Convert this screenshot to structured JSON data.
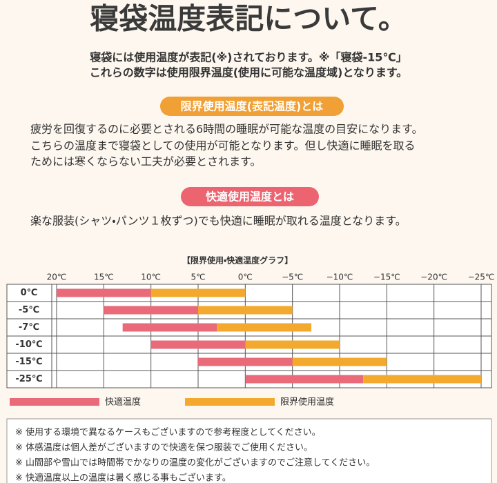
{
  "header": {
    "title": "寝袋温度表記について。",
    "intro": [
      "寝袋には使用温度が表記(※)されております。※「寝袋-15℃」",
      "これらの数字は使用限界温度(使用に可能な温度域)となります。"
    ]
  },
  "sections": [
    {
      "label": "限界使用温度(表記温度)とは",
      "lines": [
        "疲労を回復するのに必要とされる6時間の睡眠が可能な温度の目安になります。",
        "こちらの温度まで寝袋としての使用が可能となります。但し快適に睡眠を取る",
        "ためには寒くならない工夫が必要とされます。"
      ]
    },
    {
      "label": "快適使用温度とは",
      "lines": [
        "楽な服装(シャツ・パンツ１枚ずつ)でも快適に睡眠が取れる温度となります。"
      ]
    }
  ],
  "chart_data": {
    "type": "range_bar",
    "title": "【限界使用・快適温度グラフ】",
    "categories": [
      "0℃",
      "-5℃",
      "-7℃",
      "-10℃",
      "-15℃",
      "-25℃"
    ],
    "series": [
      {
        "name": "快適温度",
        "color": "#e96a78",
        "start": [
          20,
          15,
          13,
          10,
          5,
          0
        ],
        "end": [
          10,
          5,
          3,
          0,
          -5,
          -12.5
        ]
      },
      {
        "name": "限界使用温度",
        "color": "#f2a92e",
        "start": [
          10,
          5,
          3,
          0,
          -5,
          -12.5
        ],
        "end": [
          0,
          -5,
          -7,
          -10,
          -15,
          -25
        ]
      }
    ],
    "xlim": [
      20,
      -25
    ],
    "xticks": [
      {
        "value": 20,
        "label": "20℃"
      },
      {
        "value": 15,
        "label": "15℃"
      },
      {
        "value": 10,
        "label": "10℃"
      },
      {
        "value": 5,
        "label": "5℃"
      },
      {
        "value": 0,
        "label": "0℃"
      },
      {
        "value": -5,
        "label": "−5℃"
      },
      {
        "value": -10,
        "label": "−10℃"
      },
      {
        "value": -15,
        "label": "−15℃"
      },
      {
        "value": -20,
        "label": "−20℃"
      },
      {
        "value": -25,
        "label": "−25℃"
      }
    ],
    "grid": true
  },
  "notes": [
    "※ 使用する環境で異なるケースもございますので参考程度としてください。",
    "※ 体感温度は個人差がございますので快適を保つ服装でご使用ください。",
    "※ 山間部や雪山では時間帯でかなりの温度の変化がございますのでご注意してください。",
    "※ 快適温度以上の温度は暑く感じる事もございます。"
  ]
}
